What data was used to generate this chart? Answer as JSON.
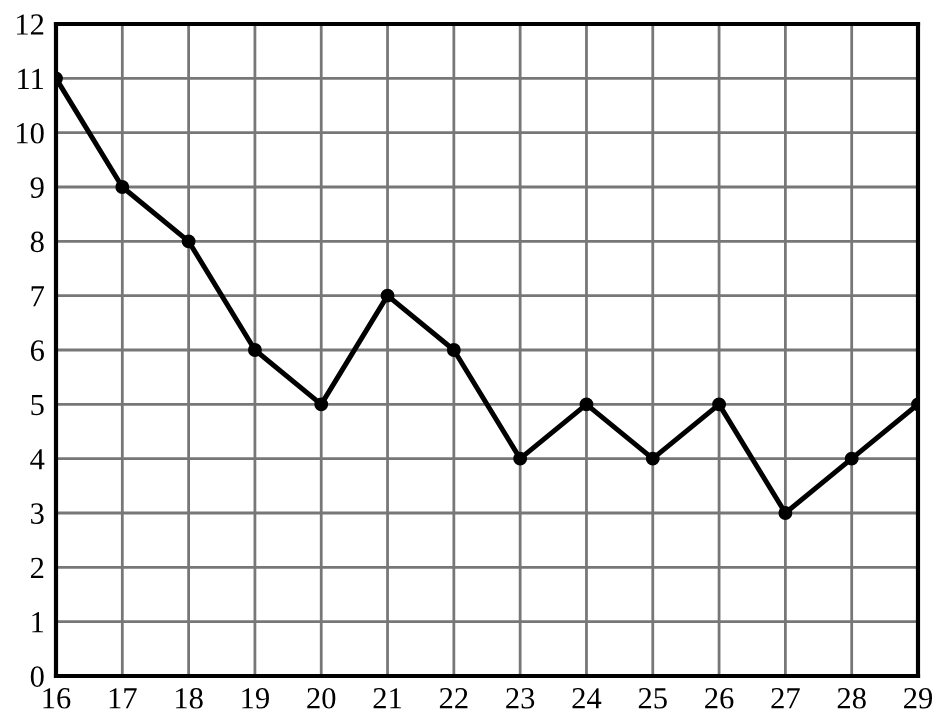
{
  "chart_data": {
    "type": "line",
    "x": [
      16,
      17,
      18,
      19,
      20,
      21,
      22,
      23,
      24,
      25,
      26,
      27,
      28,
      29
    ],
    "series": [
      {
        "color": "#000000",
        "values": [
          11,
          9,
          8,
          6,
          5,
          7,
          6,
          4,
          5,
          4,
          5,
          3,
          4,
          5
        ]
      }
    ],
    "xlim": [
      16,
      29
    ],
    "ylim": [
      0,
      12
    ],
    "xticks": [
      16,
      17,
      18,
      19,
      20,
      21,
      22,
      23,
      24,
      25,
      26,
      27,
      28,
      29
    ],
    "yticks": [
      0,
      1,
      2,
      3,
      4,
      5,
      6,
      7,
      8,
      9,
      10,
      11,
      12
    ],
    "grid": true,
    "marker": "circle",
    "line_style": "solid"
  }
}
